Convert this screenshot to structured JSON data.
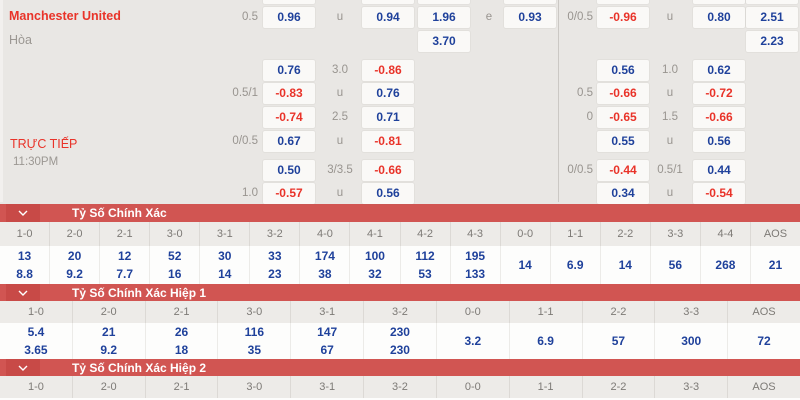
{
  "colors": {
    "page_bg": "#e9e7e4",
    "box_bg": "#faf9f7",
    "blue": "#1f419b",
    "red": "#e93329",
    "team_red": "#e93329",
    "gray_text": "#98948f",
    "bar_red": "#d15552",
    "chevron_bg": "#c84a47",
    "header_bg": "#edebe8",
    "header_text": "#7d7a76",
    "body_bg": "#fdfdfc",
    "divider": "#cbc8c4",
    "col_border": "#dcd9d5",
    "col_border_light": "#ecebe8"
  },
  "icons": {
    "section_toggle": "chevron-down"
  },
  "top": {
    "home_team": "Manchester United",
    "draw_label": "Hòa",
    "live_label": "TRỰC TIẾP",
    "kickoff_time": "11:30PM",
    "rows": [
      {
        "cells": [
          {
            "col": "h1",
            "text": "0.5",
            "tone": "lbl"
          },
          {
            "col": "b1",
            "text": "0.96",
            "tone": "pos"
          },
          {
            "col": "h2",
            "text": "u",
            "tone": "lbl"
          },
          {
            "col": "b2",
            "text": "0.94",
            "tone": "pos"
          },
          {
            "col": "b3",
            "text": "1.96",
            "tone": "pos"
          },
          {
            "col": "h3",
            "text": "e",
            "tone": "lbl"
          },
          {
            "col": "b4",
            "text": "0.93",
            "tone": "pos"
          },
          {
            "col": "h4",
            "text": "0/0.5",
            "tone": "lbl"
          },
          {
            "col": "b5",
            "text": "-0.96",
            "tone": "neg"
          },
          {
            "col": "h5",
            "text": "u",
            "tone": "lbl"
          },
          {
            "col": "b6",
            "text": "0.80",
            "tone": "pos"
          },
          {
            "col": "b7",
            "text": "2.51",
            "tone": "pos"
          }
        ]
      },
      {
        "cells": [
          {
            "col": "b3",
            "text": "3.70",
            "tone": "pos"
          },
          {
            "col": "b7",
            "text": "2.23",
            "tone": "pos"
          }
        ]
      },
      {
        "cells": [
          {
            "col": "b1",
            "text": "0.76",
            "tone": "pos"
          },
          {
            "col": "h2",
            "text": "3.0",
            "tone": "lbl"
          },
          {
            "col": "b2",
            "text": "-0.86",
            "tone": "neg"
          },
          {
            "col": "b5",
            "text": "0.56",
            "tone": "pos"
          },
          {
            "col": "h5",
            "text": "1.0",
            "tone": "lbl"
          },
          {
            "col": "b6",
            "text": "0.62",
            "tone": "pos"
          }
        ]
      },
      {
        "cells": [
          {
            "col": "h1",
            "text": "0.5/1",
            "tone": "lbl"
          },
          {
            "col": "b1",
            "text": "-0.83",
            "tone": "neg"
          },
          {
            "col": "h2",
            "text": "u",
            "tone": "lbl"
          },
          {
            "col": "b2",
            "text": "0.76",
            "tone": "pos"
          },
          {
            "col": "h4",
            "text": "0.5",
            "tone": "lbl"
          },
          {
            "col": "b5",
            "text": "-0.66",
            "tone": "neg"
          },
          {
            "col": "h5",
            "text": "u",
            "tone": "lbl"
          },
          {
            "col": "b6",
            "text": "-0.72",
            "tone": "neg"
          }
        ]
      },
      {
        "cells": [
          {
            "col": "b1",
            "text": "-0.74",
            "tone": "neg"
          },
          {
            "col": "h2",
            "text": "2.5",
            "tone": "lbl"
          },
          {
            "col": "b2",
            "text": "0.71",
            "tone": "pos"
          },
          {
            "col": "h4",
            "text": "0",
            "tone": "lbl"
          },
          {
            "col": "b5",
            "text": "-0.65",
            "tone": "neg"
          },
          {
            "col": "h5",
            "text": "1.5",
            "tone": "lbl"
          },
          {
            "col": "b6",
            "text": "-0.66",
            "tone": "neg"
          }
        ]
      },
      {
        "cells": [
          {
            "col": "h1",
            "text": "0/0.5",
            "tone": "lbl"
          },
          {
            "col": "b1",
            "text": "0.67",
            "tone": "pos"
          },
          {
            "col": "h2",
            "text": "u",
            "tone": "lbl"
          },
          {
            "col": "b2",
            "text": "-0.81",
            "tone": "neg"
          },
          {
            "col": "b5",
            "text": "0.55",
            "tone": "pos"
          },
          {
            "col": "h5",
            "text": "u",
            "tone": "lbl"
          },
          {
            "col": "b6",
            "text": "0.56",
            "tone": "pos"
          }
        ]
      },
      {
        "cells": [
          {
            "col": "b1",
            "text": "0.50",
            "tone": "pos"
          },
          {
            "col": "h2",
            "text": "3/3.5",
            "tone": "lbl"
          },
          {
            "col": "b2",
            "text": "-0.66",
            "tone": "neg"
          },
          {
            "col": "h4",
            "text": "0/0.5",
            "tone": "lbl"
          },
          {
            "col": "b5",
            "text": "-0.44",
            "tone": "neg"
          },
          {
            "col": "h5",
            "text": "0.5/1",
            "tone": "lbl"
          },
          {
            "col": "b6",
            "text": "0.44",
            "tone": "pos"
          }
        ]
      },
      {
        "cells": [
          {
            "col": "h1",
            "text": "1.0",
            "tone": "lbl"
          },
          {
            "col": "b1",
            "text": "-0.57",
            "tone": "neg"
          },
          {
            "col": "h2",
            "text": "u",
            "tone": "lbl"
          },
          {
            "col": "b2",
            "text": "0.56",
            "tone": "pos"
          },
          {
            "col": "b5",
            "text": "0.34",
            "tone": "pos"
          },
          {
            "col": "h5",
            "text": "u",
            "tone": "lbl"
          },
          {
            "col": "b6",
            "text": "-0.54",
            "tone": "neg"
          }
        ]
      }
    ]
  },
  "sections": [
    {
      "title": "Tỷ Số Chính Xác",
      "columns": [
        {
          "score": "1-0",
          "values": [
            "13",
            "8.8"
          ]
        },
        {
          "score": "2-0",
          "values": [
            "20",
            "9.2"
          ]
        },
        {
          "score": "2-1",
          "values": [
            "12",
            "7.7"
          ]
        },
        {
          "score": "3-0",
          "values": [
            "52",
            "16"
          ]
        },
        {
          "score": "3-1",
          "values": [
            "30",
            "14"
          ]
        },
        {
          "score": "3-2",
          "values": [
            "33",
            "23"
          ]
        },
        {
          "score": "4-0",
          "values": [
            "174",
            "38"
          ]
        },
        {
          "score": "4-1",
          "values": [
            "100",
            "32"
          ]
        },
        {
          "score": "4-2",
          "values": [
            "112",
            "53"
          ]
        },
        {
          "score": "4-3",
          "values": [
            "195",
            "133"
          ]
        },
        {
          "score": "0-0",
          "values": [
            "14"
          ]
        },
        {
          "score": "1-1",
          "values": [
            "6.9"
          ]
        },
        {
          "score": "2-2",
          "values": [
            "14"
          ]
        },
        {
          "score": "3-3",
          "values": [
            "56"
          ]
        },
        {
          "score": "4-4",
          "values": [
            "268"
          ]
        },
        {
          "score": "AOS",
          "values": [
            "21"
          ]
        }
      ]
    },
    {
      "title": "Tỷ Số Chính Xác Hiệp 1",
      "columns": [
        {
          "score": "1-0",
          "values": [
            "5.4",
            "3.65"
          ]
        },
        {
          "score": "2-0",
          "values": [
            "21",
            "9.2"
          ]
        },
        {
          "score": "2-1",
          "values": [
            "26",
            "18"
          ]
        },
        {
          "score": "3-0",
          "values": [
            "116",
            "35"
          ]
        },
        {
          "score": "3-1",
          "values": [
            "147",
            "67"
          ]
        },
        {
          "score": "3-2",
          "values": [
            "230",
            "230"
          ]
        },
        {
          "score": "0-0",
          "values": [
            "3.2"
          ]
        },
        {
          "score": "1-1",
          "values": [
            "6.9"
          ]
        },
        {
          "score": "2-2",
          "values": [
            "57"
          ]
        },
        {
          "score": "3-3",
          "values": [
            "300"
          ]
        },
        {
          "score": "AOS",
          "values": [
            "72"
          ]
        }
      ]
    },
    {
      "title": "Tỷ Số Chính Xác Hiệp 2",
      "columns": [
        {
          "score": "1-0",
          "values": []
        },
        {
          "score": "2-0",
          "values": []
        },
        {
          "score": "2-1",
          "values": []
        },
        {
          "score": "3-0",
          "values": []
        },
        {
          "score": "3-1",
          "values": []
        },
        {
          "score": "3-2",
          "values": []
        },
        {
          "score": "0-0",
          "values": []
        },
        {
          "score": "1-1",
          "values": []
        },
        {
          "score": "2-2",
          "values": []
        },
        {
          "score": "3-3",
          "values": []
        },
        {
          "score": "AOS",
          "values": []
        }
      ]
    }
  ]
}
